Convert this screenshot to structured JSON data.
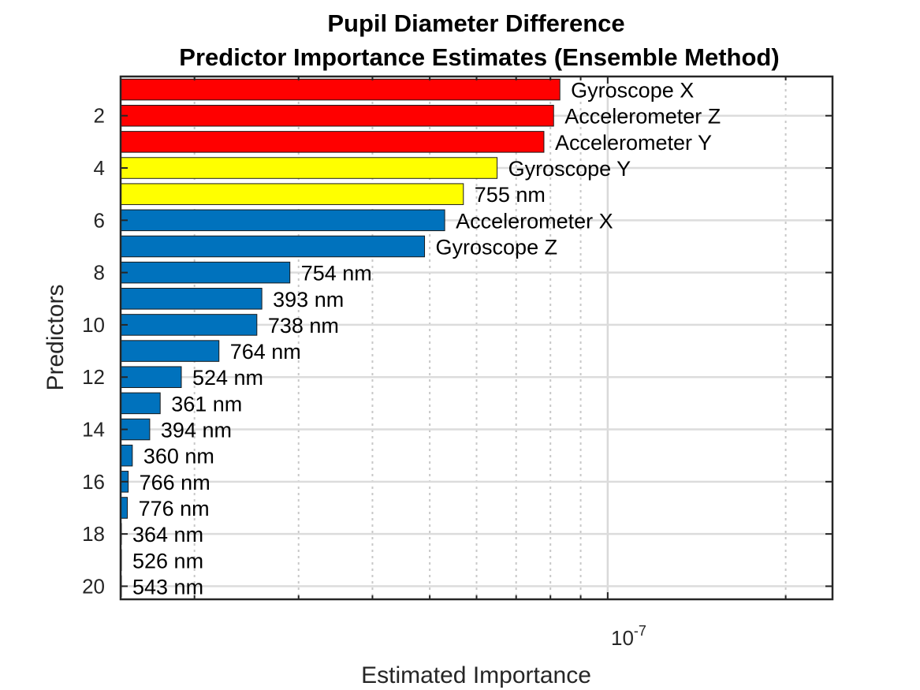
{
  "chart_data": {
    "type": "bar",
    "orientation": "horizontal",
    "title": [
      "Pupil Diameter Difference",
      "Predictor Importance Estimates (Ensemble Method)"
    ],
    "xlabel": "Estimated Importance",
    "ylabel": "Predictors",
    "xscale": "log",
    "xlim": [
      1.5e-08,
      2.4e-07
    ],
    "ylim": [
      0.5,
      20.5
    ],
    "x_tick_label": {
      "base": "10",
      "exponent": "-7"
    },
    "y_ticks": [
      "2",
      "4",
      "6",
      "8",
      "10",
      "12",
      "14",
      "16",
      "18",
      "20"
    ],
    "grid": true,
    "bars": [
      {
        "rank": 1,
        "label": "Gyroscope X",
        "value": 8.3e-08,
        "color": "#ff0000"
      },
      {
        "rank": 2,
        "label": "Accelerometer Z",
        "value": 8.1e-08,
        "color": "#ff0000"
      },
      {
        "rank": 3,
        "label": "Accelerometer Y",
        "value": 7.8e-08,
        "color": "#ff0000"
      },
      {
        "rank": 4,
        "label": "Gyroscope Y",
        "value": 6.5e-08,
        "color": "#ffff00"
      },
      {
        "rank": 5,
        "label": "755 nm",
        "value": 5.7e-08,
        "color": "#ffff00"
      },
      {
        "rank": 6,
        "label": "Accelerometer X",
        "value": 5.3e-08,
        "color": "#0072bd"
      },
      {
        "rank": 7,
        "label": "Gyroscope Z",
        "value": 4.9e-08,
        "color": "#0072bd"
      },
      {
        "rank": 8,
        "label": "754 nm",
        "value": 2.9e-08,
        "color": "#0072bd"
      },
      {
        "rank": 9,
        "label": "393 nm",
        "value": 2.6e-08,
        "color": "#0072bd"
      },
      {
        "rank": 10,
        "label": "738 nm",
        "value": 2.55e-08,
        "color": "#0072bd"
      },
      {
        "rank": 11,
        "label": "764 nm",
        "value": 2.2e-08,
        "color": "#0072bd"
      },
      {
        "rank": 12,
        "label": "524 nm",
        "value": 1.9e-08,
        "color": "#0072bd"
      },
      {
        "rank": 13,
        "label": "361 nm",
        "value": 1.75e-08,
        "color": "#0072bd"
      },
      {
        "rank": 14,
        "label": "394 nm",
        "value": 1.68e-08,
        "color": "#0072bd"
      },
      {
        "rank": 15,
        "label": "360 nm",
        "value": 1.57e-08,
        "color": "#0072bd"
      },
      {
        "rank": 16,
        "label": "766 nm",
        "value": 1.545e-08,
        "color": "#0072bd"
      },
      {
        "rank": 17,
        "label": "776 nm",
        "value": 1.54e-08,
        "color": "#0072bd"
      },
      {
        "rank": 18,
        "label": "364 nm",
        "value": 1.503e-08,
        "color": "#0072bd"
      },
      {
        "rank": 19,
        "label": "526 nm",
        "value": 1.501e-08,
        "color": "#0072bd"
      },
      {
        "rank": 20,
        "label": "543 nm",
        "value": 1.5005e-08,
        "color": "#0072bd"
      }
    ]
  }
}
